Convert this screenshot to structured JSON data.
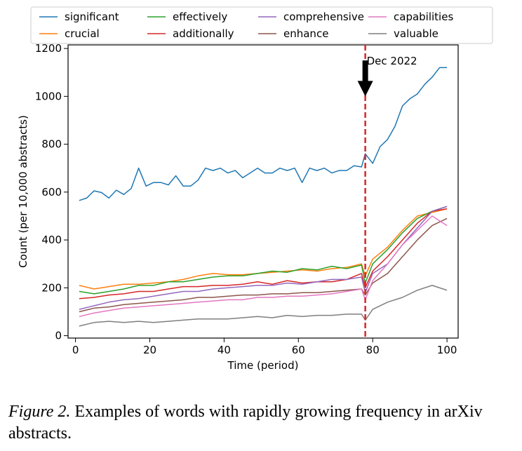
{
  "chart_data": {
    "type": "line",
    "title": "",
    "xlabel": "Time (period)",
    "ylabel": "Count (per 10,000 abstracts)",
    "xlim": [
      -2,
      103
    ],
    "ylim": [
      -10,
      1215
    ],
    "xticks": [
      0,
      20,
      40,
      60,
      80,
      100
    ],
    "yticks": [
      0,
      200,
      400,
      600,
      800,
      1000,
      1200
    ],
    "grid": false,
    "legend_placement": "top (above plot), 4 columns",
    "annotation": {
      "text": "Dec 2022",
      "x": 78,
      "arrow_from": 1150,
      "arrow_to": 1000,
      "vline_color": "#d62728"
    },
    "series": [
      {
        "name": "significant",
        "color": "#1f77b4",
        "x": [
          1,
          3,
          5,
          7,
          9,
          11,
          13,
          15,
          17,
          19,
          21,
          23,
          25,
          27,
          29,
          31,
          33,
          35,
          37,
          39,
          41,
          43,
          45,
          47,
          49,
          51,
          53,
          55,
          57,
          59,
          61,
          63,
          65,
          67,
          69,
          71,
          73,
          75,
          77,
          78,
          80,
          82,
          84,
          86,
          88,
          90,
          92,
          94,
          96,
          98,
          100
        ],
        "values": [
          565,
          575,
          605,
          598,
          575,
          608,
          590,
          615,
          700,
          625,
          640,
          640,
          630,
          668,
          625,
          625,
          650,
          700,
          690,
          700,
          680,
          690,
          660,
          680,
          700,
          680,
          680,
          700,
          690,
          700,
          640,
          700,
          690,
          700,
          680,
          690,
          690,
          710,
          705,
          760,
          720,
          790,
          820,
          875,
          960,
          990,
          1010,
          1050,
          1080,
          1120,
          1120
        ]
      },
      {
        "name": "crucial",
        "color": "#ff7f0e",
        "x": [
          1,
          5,
          9,
          13,
          17,
          21,
          25,
          29,
          33,
          37,
          41,
          45,
          49,
          53,
          57,
          61,
          65,
          69,
          73,
          77,
          78,
          80,
          84,
          88,
          92,
          96,
          100
        ],
        "values": [
          210,
          195,
          205,
          215,
          215,
          220,
          225,
          235,
          250,
          260,
          255,
          255,
          260,
          265,
          270,
          275,
          270,
          280,
          285,
          300,
          250,
          320,
          370,
          440,
          500,
          515,
          530
        ]
      },
      {
        "name": "effectively",
        "color": "#2ca02c",
        "x": [
          1,
          5,
          9,
          13,
          17,
          21,
          25,
          29,
          33,
          37,
          41,
          45,
          49,
          53,
          57,
          61,
          65,
          69,
          73,
          77,
          78,
          80,
          84,
          88,
          92,
          96,
          100
        ],
        "values": [
          185,
          175,
          185,
          195,
          210,
          210,
          225,
          225,
          235,
          245,
          250,
          250,
          260,
          270,
          265,
          280,
          275,
          290,
          280,
          295,
          220,
          300,
          360,
          430,
          490,
          520,
          540
        ]
      },
      {
        "name": "additionally",
        "color": "#d62728",
        "x": [
          1,
          5,
          9,
          13,
          17,
          21,
          25,
          29,
          33,
          37,
          41,
          45,
          49,
          53,
          57,
          61,
          65,
          69,
          73,
          77,
          78,
          80,
          84,
          88,
          92,
          96,
          100
        ],
        "values": [
          155,
          160,
          170,
          175,
          185,
          185,
          195,
          205,
          205,
          210,
          210,
          215,
          225,
          215,
          230,
          220,
          225,
          225,
          235,
          260,
          200,
          270,
          330,
          400,
          470,
          520,
          530
        ]
      },
      {
        "name": "comprehensive",
        "color": "#9467bd",
        "x": [
          1,
          5,
          9,
          13,
          17,
          21,
          25,
          29,
          33,
          37,
          41,
          45,
          49,
          53,
          57,
          61,
          65,
          69,
          73,
          77,
          78,
          80,
          84,
          88,
          92,
          96,
          100
        ],
        "values": [
          110,
          125,
          140,
          150,
          155,
          165,
          175,
          185,
          185,
          195,
          200,
          205,
          210,
          210,
          220,
          215,
          225,
          235,
          235,
          245,
          180,
          260,
          300,
          380,
          450,
          520,
          540
        ]
      },
      {
        "name": "enhance",
        "color": "#8c564b",
        "x": [
          1,
          5,
          9,
          13,
          17,
          21,
          25,
          29,
          33,
          37,
          41,
          45,
          49,
          53,
          57,
          61,
          65,
          69,
          73,
          77,
          78,
          80,
          84,
          88,
          92,
          96,
          100
        ],
        "values": [
          100,
          115,
          120,
          130,
          135,
          140,
          145,
          150,
          160,
          160,
          165,
          170,
          170,
          175,
          175,
          180,
          180,
          185,
          190,
          195,
          170,
          220,
          260,
          330,
          400,
          460,
          490
        ]
      },
      {
        "name": "capabilities",
        "color": "#e377c2",
        "x": [
          1,
          5,
          9,
          13,
          17,
          21,
          25,
          29,
          33,
          37,
          41,
          45,
          49,
          53,
          57,
          61,
          65,
          69,
          73,
          77,
          78,
          80,
          84,
          88,
          92,
          96,
          100
        ],
        "values": [
          80,
          95,
          105,
          115,
          120,
          125,
          130,
          135,
          140,
          145,
          150,
          150,
          160,
          160,
          165,
          165,
          170,
          175,
          185,
          195,
          150,
          230,
          300,
          380,
          440,
          500,
          460
        ]
      },
      {
        "name": "valuable",
        "color": "#7f7f7f",
        "x": [
          1,
          5,
          9,
          13,
          17,
          21,
          25,
          29,
          33,
          37,
          41,
          45,
          49,
          53,
          57,
          61,
          65,
          69,
          73,
          77,
          78,
          80,
          84,
          88,
          92,
          96,
          100
        ],
        "values": [
          40,
          55,
          60,
          55,
          60,
          55,
          60,
          65,
          70,
          70,
          70,
          75,
          80,
          75,
          85,
          80,
          85,
          85,
          90,
          90,
          65,
          110,
          140,
          160,
          190,
          210,
          190
        ]
      }
    ]
  },
  "caption": {
    "label": "Figure 2.",
    "text": " Examples of words with rapidly growing frequency in arXiv abstracts."
  }
}
